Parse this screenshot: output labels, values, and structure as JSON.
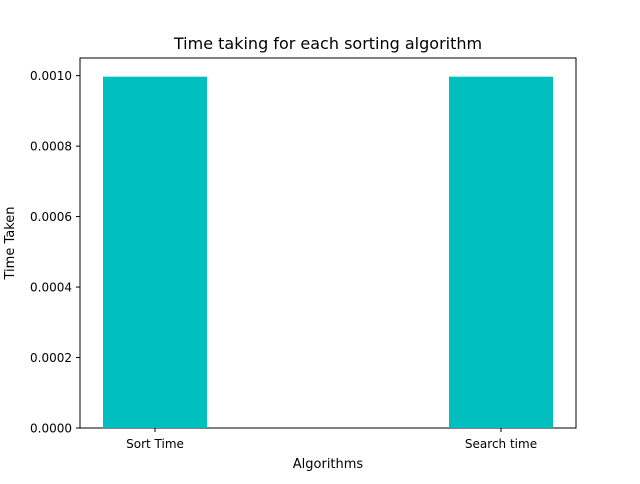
{
  "chart_data": {
    "type": "bar",
    "title": "Time taking for each sorting algorithm",
    "xlabel": "Algorithms",
    "ylabel": "Time Taken",
    "categories": [
      "Sort Time",
      "Search time"
    ],
    "values": [
      0.000997,
      0.000997
    ],
    "ylim": [
      0,
      0.00105
    ],
    "yticks": [
      0.0,
      0.0002,
      0.0004,
      0.0006,
      0.0008,
      0.001
    ],
    "ytick_labels": [
      "0.0000",
      "0.0002",
      "0.0004",
      "0.0006",
      "0.0008",
      "0.0010"
    ],
    "bar_color": "#00bfbf",
    "grid": false,
    "legend": "none"
  }
}
